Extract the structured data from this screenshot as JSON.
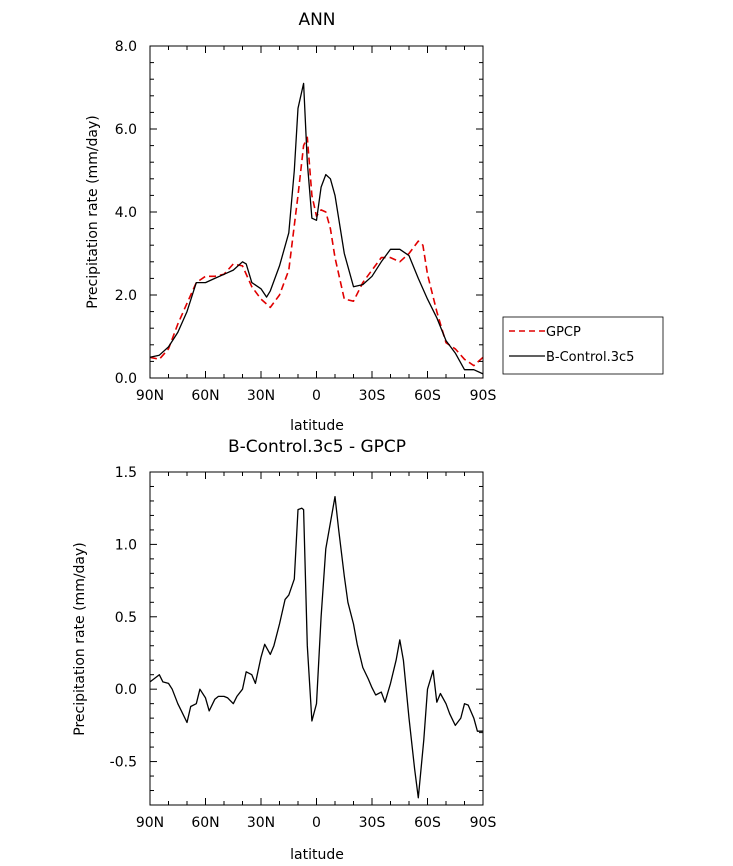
{
  "chart_data": [
    {
      "type": "line",
      "title": "ANN",
      "xlabel": "latitude",
      "ylabel": "Precipitation rate (mm/day)",
      "xlim": [
        90,
        -90
      ],
      "ylim": [
        0,
        8
      ],
      "xticks": [
        90,
        60,
        30,
        0,
        -30,
        -60,
        -90
      ],
      "xtick_labels": [
        "90N",
        "60N",
        "30N",
        "0",
        "30S",
        "60S",
        "90S"
      ],
      "yticks": [
        0,
        2,
        4,
        6,
        8
      ],
      "ytick_labels": [
        "0.0",
        "2.0",
        "4.0",
        "6.0",
        "8.0"
      ],
      "grid": false,
      "legend": "right",
      "series": [
        {
          "name": "GPCP",
          "color": "#e00000",
          "style": "dashed",
          "x": [
            90,
            85,
            80,
            75,
            70,
            65,
            60,
            55,
            50,
            45,
            40,
            35,
            30,
            25,
            20,
            15,
            10,
            7,
            5,
            2.5,
            0,
            -2.5,
            -5,
            -7.5,
            -10,
            -15,
            -20,
            -25,
            -30,
            -35,
            -40,
            -45,
            -50,
            -55,
            -57.5,
            -60,
            -65,
            -70,
            -75,
            -80,
            -85,
            -90
          ],
          "values": [
            0.5,
            0.45,
            0.7,
            1.3,
            1.8,
            2.3,
            2.45,
            2.45,
            2.5,
            2.75,
            2.7,
            2.2,
            1.9,
            1.7,
            2.0,
            2.6,
            4.4,
            5.6,
            5.8,
            4.4,
            3.9,
            4.05,
            4.0,
            3.6,
            2.9,
            1.9,
            1.85,
            2.3,
            2.6,
            2.9,
            2.9,
            2.8,
            3.0,
            3.3,
            3.2,
            2.5,
            1.6,
            0.85,
            0.7,
            0.45,
            0.3,
            0.5
          ]
        },
        {
          "name": "B-Control.3c5",
          "color": "#000000",
          "style": "solid",
          "x": [
            90,
            85,
            80,
            75,
            70,
            65,
            60,
            55,
            50,
            45,
            40,
            38,
            35,
            30,
            27,
            25,
            20,
            15,
            12,
            10,
            7,
            5,
            2.5,
            0,
            -2.5,
            -5,
            -7.5,
            -10,
            -15,
            -20,
            -25,
            -30,
            -35,
            -40,
            -45,
            -50,
            -55,
            -60,
            -65,
            -70,
            -75,
            -80,
            -85,
            -90
          ],
          "values": [
            0.5,
            0.55,
            0.75,
            1.1,
            1.6,
            2.3,
            2.3,
            2.4,
            2.5,
            2.6,
            2.8,
            2.75,
            2.3,
            2.15,
            1.95,
            2.1,
            2.7,
            3.5,
            5.0,
            6.5,
            7.1,
            5.2,
            3.85,
            3.8,
            4.6,
            4.9,
            4.8,
            4.4,
            3.0,
            2.2,
            2.25,
            2.45,
            2.8,
            3.1,
            3.1,
            2.95,
            2.4,
            1.9,
            1.45,
            0.9,
            0.6,
            0.2,
            0.2,
            0.1
          ]
        }
      ]
    },
    {
      "type": "line",
      "title": "B-Control.3c5 - GPCP",
      "xlabel": "latitude",
      "ylabel": "Precipitation rate (mm/day)",
      "xlim": [
        90,
        -90
      ],
      "ylim": [
        -0.8,
        1.5
      ],
      "xticks": [
        90,
        60,
        30,
        0,
        -30,
        -60,
        -90
      ],
      "xtick_labels": [
        "90N",
        "60N",
        "30N",
        "0",
        "30S",
        "60S",
        "90S"
      ],
      "yticks": [
        -0.5,
        0,
        0.5,
        1,
        1.5
      ],
      "ytick_labels": [
        "-0.5",
        "0.0",
        "0.5",
        "1.0",
        "1.5"
      ],
      "grid": false,
      "series": [
        {
          "color": "#000000",
          "style": "solid",
          "x": [
            90,
            87,
            85,
            83,
            80,
            78,
            75,
            73,
            70,
            68,
            65,
            63,
            60,
            58,
            55,
            53,
            50,
            48,
            45,
            43,
            40,
            38,
            35,
            33,
            30,
            28,
            25,
            23,
            20,
            17,
            15,
            12,
            10,
            8,
            7,
            5,
            2.5,
            0,
            -2.5,
            -5,
            -7.5,
            -10,
            -12,
            -15,
            -17,
            -20,
            -22,
            -25,
            -28,
            -30,
            -32,
            -35,
            -37,
            -40,
            -43,
            -45,
            -47,
            -50,
            -53,
            -55,
            -58,
            -60,
            -63,
            -65,
            -67,
            -70,
            -72,
            -75,
            -78,
            -80,
            -82,
            -85,
            -87,
            -90
          ],
          "values": [
            0.05,
            0.08,
            0.1,
            0.05,
            0.04,
            0.0,
            -0.1,
            -0.15,
            -0.23,
            -0.12,
            -0.1,
            0.0,
            -0.06,
            -0.15,
            -0.07,
            -0.05,
            -0.05,
            -0.06,
            -0.1,
            -0.05,
            0.0,
            0.12,
            0.1,
            0.04,
            0.22,
            0.31,
            0.24,
            0.3,
            0.45,
            0.62,
            0.65,
            0.76,
            1.24,
            1.25,
            1.24,
            0.3,
            -0.22,
            -0.1,
            0.5,
            0.97,
            1.15,
            1.33,
            1.1,
            0.78,
            0.6,
            0.45,
            0.31,
            0.15,
            0.07,
            0.01,
            -0.04,
            -0.02,
            -0.09,
            0.04,
            0.2,
            0.34,
            0.2,
            -0.2,
            -0.55,
            -0.75,
            -0.35,
            0.0,
            0.13,
            -0.09,
            -0.03,
            -0.1,
            -0.17,
            -0.25,
            -0.2,
            -0.1,
            -0.11,
            -0.2,
            -0.29,
            -0.29
          ]
        }
      ]
    }
  ]
}
